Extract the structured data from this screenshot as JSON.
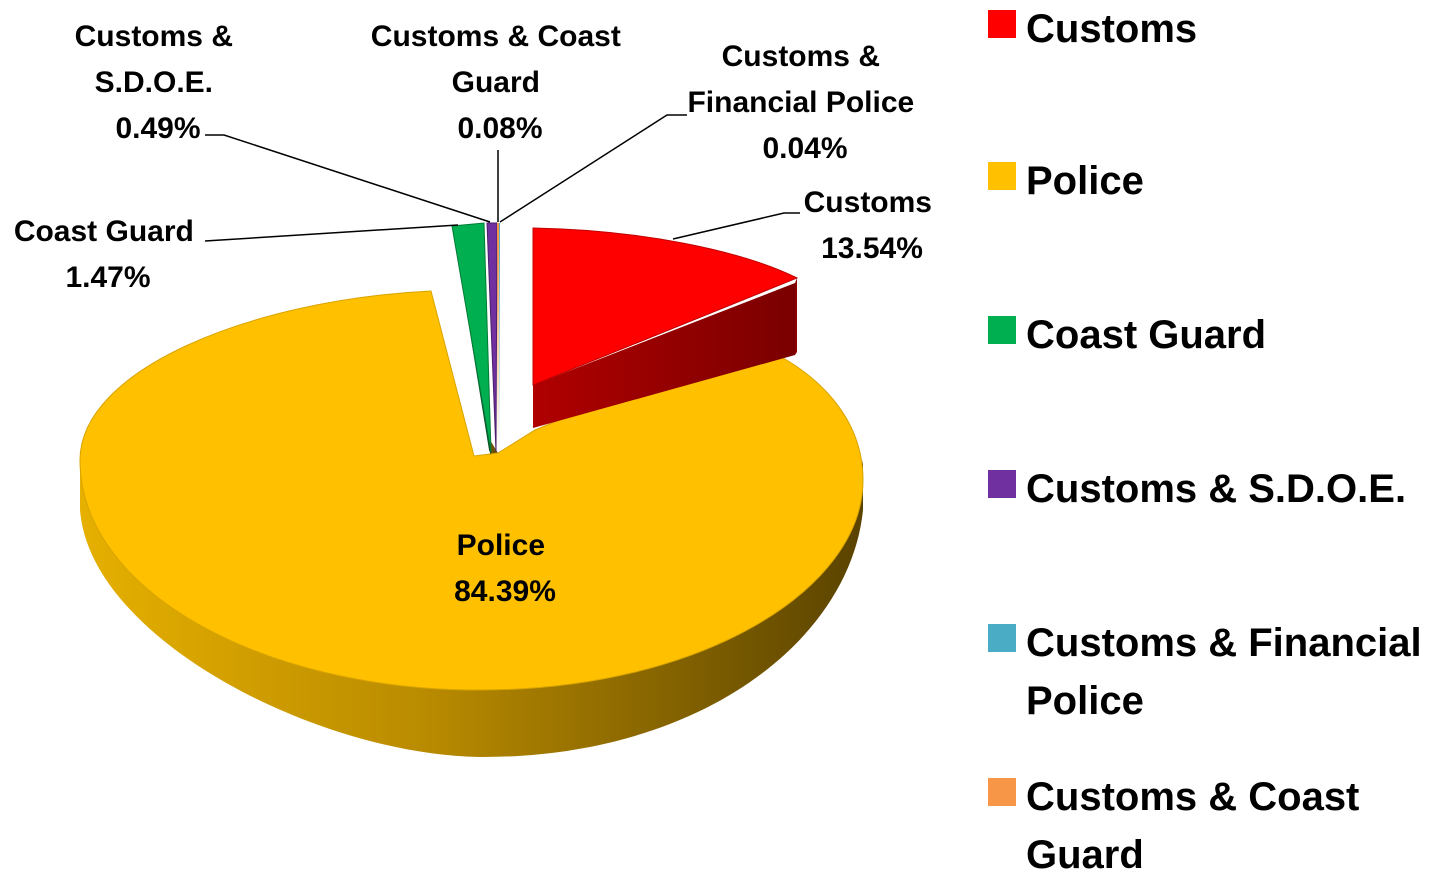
{
  "chart_data": {
    "type": "pie",
    "title": "",
    "slices": [
      {
        "name": "Customs",
        "value": 13.54,
        "label": "13.54%",
        "color": "#FF0000"
      },
      {
        "name": "Police",
        "value": 84.39,
        "label": "84.39%",
        "color": "#FFC000"
      },
      {
        "name": "Coast Guard",
        "value": 1.47,
        "label": "1.47%",
        "color": "#00B050"
      },
      {
        "name": "Customs & S.D.O.E.",
        "value": 0.49,
        "label": "0.49%",
        "color": "#7030A0"
      },
      {
        "name": "Customs & Financial Police",
        "value": 0.04,
        "label": "0.04%",
        "color": "#4BACC6"
      },
      {
        "name": "Customs & Coast Guard",
        "value": 0.08,
        "label": "0.08%",
        "color": "#F79646"
      }
    ],
    "legend": {
      "placement": "right",
      "entries": [
        "Customs",
        "Police",
        "Coast Guard",
        "Customs & S.D.O.E.",
        "Customs & Financial Police",
        "Customs & Coast Guard"
      ]
    },
    "data_labels": {
      "customs": [
        "Customs",
        "13.54%"
      ],
      "police": [
        "Police",
        "84.39%"
      ],
      "coast_guard": [
        "Coast Guard",
        "1.47%"
      ],
      "customs_sdoe": [
        "Customs &",
        "S.D.O.E.",
        "0.49%"
      ],
      "customs_coast_guard": [
        "Customs & Coast",
        "Guard",
        "0.08%"
      ],
      "customs_financial_police": [
        "Customs &",
        "Financial Police",
        "0.04%"
      ]
    }
  }
}
